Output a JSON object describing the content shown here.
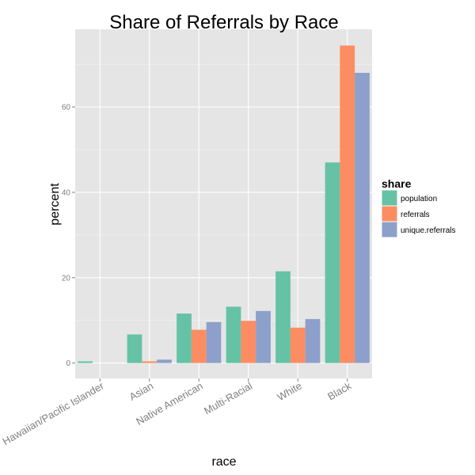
{
  "chart_data": {
    "type": "bar",
    "title": "Share of Referrals by Race",
    "xlabel": "race",
    "ylabel": "percent",
    "categories": [
      "Hawaiian/Pacific Islander",
      "Asian",
      "Native American",
      "Multi-Racial",
      "White",
      "Black"
    ],
    "series": [
      {
        "name": "population",
        "values": [
          0.4,
          6.7,
          11.6,
          13.2,
          21.5,
          47.0
        ]
      },
      {
        "name": "referrals",
        "values": [
          0.0,
          0.4,
          7.8,
          9.9,
          8.3,
          74.4
        ]
      },
      {
        "name": "unique.referrals",
        "values": [
          0.0,
          0.8,
          9.6,
          12.2,
          10.3,
          68.0
        ]
      }
    ],
    "ylim": [
      -3.6,
      78.2
    ],
    "yticks": [
      0,
      20,
      40,
      60
    ],
    "grid": true,
    "legend": {
      "title": "share",
      "position": "right"
    },
    "colors": [
      "#66c2a5",
      "#fc8d62",
      "#8da0cb"
    ],
    "panel_background": "#e5e5e5",
    "grid_color": "#ffffff"
  }
}
